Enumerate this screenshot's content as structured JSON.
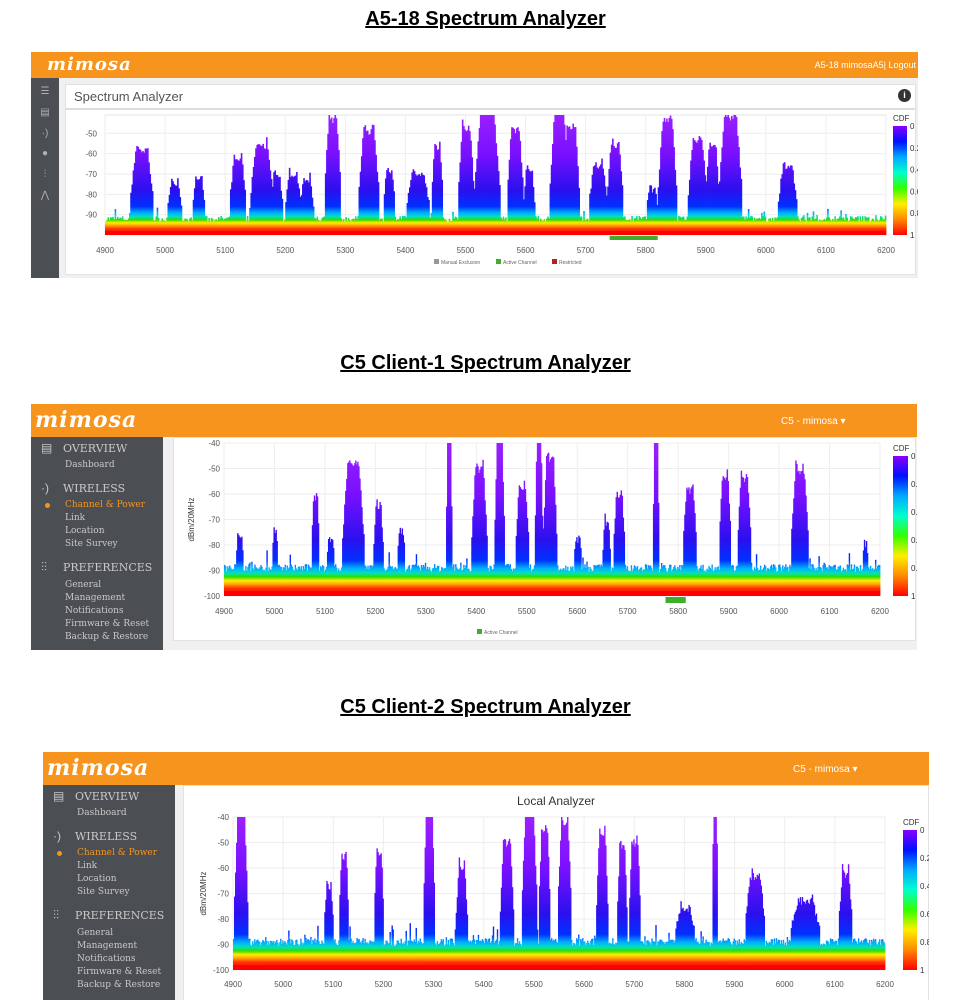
{
  "titles": [
    "A5-18 Spectrum Analyzer",
    "C5 Client-1 Spectrum Analyzer",
    "C5 Client-2 Spectrum Analyzer"
  ],
  "brand": "mimosa",
  "colors": {
    "brand": "#f7941d",
    "sidebar": "#4b4e52",
    "active_channel": "#3fae2a",
    "manual_exclusion": "#999999",
    "restricted": "#b22222"
  },
  "panel1": {
    "header_right": "A5-18 mimosaA5| Logout",
    "card_title": "Spectrum Analyzer",
    "info_icon": "info-icon",
    "sidebar_icons": [
      "menu-icon",
      "document-icon",
      "wireless-icon",
      "globe-icon",
      "sliders-icon",
      "chart-icon"
    ],
    "legend": [
      "Manual Exclusion",
      "Active Channel",
      "Restricted"
    ]
  },
  "panel2": {
    "header_right": "C5 - mimosa ▾",
    "legend": [
      "Active Channel"
    ]
  },
  "panel3": {
    "header_right": "C5 - mimosa ▾",
    "card_title": "Local Analyzer"
  },
  "sidebar": {
    "overview": "OVERVIEW",
    "dashboard": "Dashboard",
    "wireless": "WIRELESS",
    "items_wireless": [
      "Channel & Power",
      "Link",
      "Location",
      "Site Survey"
    ],
    "preferences": "PREFERENCES",
    "items_pref": [
      "General",
      "Management",
      "Notifications",
      "Firmware & Reset",
      "Backup & Restore"
    ]
  },
  "chart_data": [
    {
      "type": "area",
      "title": "A5-18 Spectrum Analyzer",
      "xlabel": "",
      "ylabel": "",
      "xlim": [
        4900,
        6200
      ],
      "ylim": [
        -100,
        -41
      ],
      "xticks": [
        4900,
        5000,
        5100,
        5200,
        5300,
        5400,
        5500,
        5600,
        5700,
        5800,
        5900,
        6000,
        6100,
        6200
      ],
      "yticks": [
        -50,
        -60,
        -70,
        -80,
        -90
      ],
      "noise_floor_dbm": -92,
      "active_channel_mhz": [
        5740,
        5820
      ],
      "peaks": [
        [
          4960,
          20,
          -60
        ],
        [
          5015,
          12,
          -77
        ],
        [
          5055,
          10,
          -73
        ],
        [
          5120,
          14,
          -65
        ],
        [
          5160,
          20,
          -58
        ],
        [
          5185,
          10,
          -72
        ],
        [
          5212,
          14,
          -73
        ],
        [
          5235,
          12,
          -75
        ],
        [
          5278,
          14,
          -45
        ],
        [
          5338,
          18,
          -51
        ],
        [
          5372,
          10,
          -70
        ],
        [
          5420,
          20,
          -72
        ],
        [
          5452,
          10,
          -59
        ],
        [
          5500,
          14,
          -50
        ],
        [
          5535,
          22,
          -41
        ],
        [
          5582,
          14,
          -50
        ],
        [
          5605,
          10,
          -70
        ],
        [
          5655,
          16,
          -41
        ],
        [
          5675,
          14,
          -49
        ],
        [
          5720,
          16,
          -68
        ],
        [
          5748,
          14,
          -58
        ],
        [
          5810,
          10,
          -80
        ],
        [
          5835,
          16,
          -45
        ],
        [
          5885,
          16,
          -55
        ],
        [
          5910,
          12,
          -58
        ],
        [
          5940,
          20,
          -44
        ],
        [
          6035,
          16,
          -68
        ]
      ],
      "legend": {
        "title": "CDF",
        "ticks": [
          "0",
          "0.2",
          "0.4",
          "0.6",
          "0.8",
          "1"
        ],
        "placement": "right"
      }
    },
    {
      "type": "area",
      "title": "C5 Client-1 Spectrum Analyzer",
      "xlabel": "",
      "ylabel": "dBm/20MHz",
      "xlim": [
        4900,
        6200
      ],
      "ylim": [
        -100,
        -40
      ],
      "xticks": [
        4900,
        5000,
        5100,
        5200,
        5300,
        5400,
        5500,
        5600,
        5700,
        5800,
        5900,
        6000,
        6100,
        6200
      ],
      "yticks": [
        -40,
        -50,
        -60,
        -70,
        -80,
        -90,
        -100
      ],
      "noise_floor_dbm": -89,
      "active_channel_mhz": [
        5775,
        5815
      ],
      "peaks": [
        [
          4930,
          8,
          -78
        ],
        [
          5000,
          6,
          -77
        ],
        [
          5080,
          8,
          -63
        ],
        [
          5110,
          8,
          -80
        ],
        [
          5155,
          22,
          -50
        ],
        [
          5205,
          10,
          -67
        ],
        [
          5250,
          8,
          -77
        ],
        [
          5345,
          6,
          -40
        ],
        [
          5405,
          16,
          -52
        ],
        [
          5445,
          10,
          -40
        ],
        [
          5490,
          14,
          -60
        ],
        [
          5523,
          8,
          -40
        ],
        [
          5545,
          14,
          -48
        ],
        [
          5600,
          8,
          -80
        ],
        [
          5657,
          8,
          -73
        ],
        [
          5682,
          12,
          -63
        ],
        [
          5755,
          6,
          -40
        ],
        [
          5822,
          14,
          -60
        ],
        [
          5892,
          12,
          -55
        ],
        [
          5930,
          14,
          -56
        ],
        [
          6040,
          18,
          -53
        ],
        [
          6170,
          6,
          -82
        ]
      ],
      "legend": {
        "title": "CDF",
        "ticks": [
          "0",
          "0.2",
          "0.4",
          "0.6",
          "0.8",
          "1"
        ],
        "placement": "right"
      }
    },
    {
      "type": "area",
      "title": "Local Analyzer",
      "xlabel": "",
      "ylabel": "dBm/20MHz",
      "xlim": [
        4900,
        6200
      ],
      "ylim": [
        -100,
        -40
      ],
      "xticks": [
        4900,
        5000,
        5100,
        5200,
        5300,
        5400,
        5500,
        5600,
        5700,
        5800,
        5900,
        6000,
        6100,
        6200
      ],
      "yticks": [
        -40,
        -50,
        -60,
        -70,
        -80,
        -90,
        -100
      ],
      "noise_floor_dbm": -89,
      "peaks": [
        [
          4915,
          14,
          -40
        ],
        [
          5090,
          10,
          -70
        ],
        [
          5120,
          10,
          -57
        ],
        [
          5190,
          10,
          -57
        ],
        [
          5290,
          12,
          -40
        ],
        [
          5355,
          12,
          -62
        ],
        [
          5445,
          14,
          -52
        ],
        [
          5490,
          16,
          -40
        ],
        [
          5520,
          12,
          -47
        ],
        [
          5560,
          14,
          -45
        ],
        [
          5635,
          12,
          -48
        ],
        [
          5675,
          10,
          -53
        ],
        [
          5700,
          12,
          -52
        ],
        [
          5800,
          20,
          -78
        ],
        [
          5860,
          6,
          -40
        ],
        [
          5940,
          20,
          -65
        ],
        [
          6040,
          30,
          -75
        ],
        [
          6120,
          14,
          -65
        ]
      ],
      "legend": {
        "title": "CDF",
        "ticks": [
          "0",
          "0.2",
          "0.4",
          "0.6",
          "0.8",
          "1"
        ],
        "placement": "right"
      }
    }
  ]
}
